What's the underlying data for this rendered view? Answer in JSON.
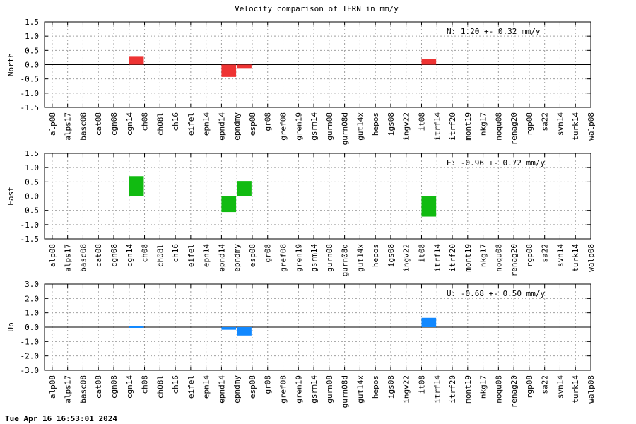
{
  "title": "Velocity comparison of TERN in mm/y",
  "timestamp": "Tue Apr 16 16:53:01 2024",
  "chart_data": [
    {
      "type": "bar",
      "ylabel": "North",
      "ylim": [
        -1.5,
        1.5
      ],
      "yticks": [
        -1.5,
        -1.0,
        -0.5,
        0.0,
        0.5,
        1.0,
        1.5
      ],
      "ytick_labels": [
        "-1.5",
        "-1.0",
        "-0.5",
        "0.0",
        "0.5",
        "1.0",
        "1.5"
      ],
      "annotation": "N:   1.20 +-  0.32 mm/y",
      "color": "#ee3333",
      "grid": true,
      "categories": [
        "alp08",
        "alps17",
        "basc08",
        "cat08",
        "cgn08",
        "cgn14",
        "ch08",
        "ch08l",
        "ch16",
        "eifel",
        "epn14",
        "epnd14",
        "epndmy",
        "esp08",
        "gr08",
        "gref08",
        "gren19",
        "gsrm14",
        "gurn08",
        "gurn08d",
        "gut14x",
        "hepos",
        "igs08",
        "ingv22",
        "it08",
        "itrf14",
        "itrf20",
        "mont19",
        "nkg17",
        "noqu08",
        "renag20",
        "rgp08",
        "sa22",
        "svn14",
        "turk14",
        "walp08"
      ],
      "values": [
        0,
        0,
        0,
        0,
        0,
        0.3,
        0,
        0,
        0,
        0,
        0,
        -0.43,
        -0.12,
        0,
        0,
        0,
        0,
        0,
        0,
        0,
        0,
        0,
        0,
        0,
        0.2,
        0,
        0,
        0,
        0,
        0,
        0,
        0,
        0,
        0,
        0,
        0
      ]
    },
    {
      "type": "bar",
      "ylabel": "East",
      "ylim": [
        -1.5,
        1.5
      ],
      "yticks": [
        -1.5,
        -1.0,
        -0.5,
        0.0,
        0.5,
        1.0,
        1.5
      ],
      "ytick_labels": [
        "-1.5",
        "-1.0",
        "-0.5",
        "0.0",
        "0.5",
        "1.0",
        "1.5"
      ],
      "annotation": "E:  -0.96 +-  0.72 mm/y",
      "color": "#11bb11",
      "grid": true,
      "categories": [
        "alp08",
        "alps17",
        "basc08",
        "cat08",
        "cgn08",
        "cgn14",
        "ch08",
        "ch08l",
        "ch16",
        "eifel",
        "epn14",
        "epnd14",
        "epndmy",
        "esp08",
        "gr08",
        "gref08",
        "gren19",
        "gsrm14",
        "gurn08",
        "gurn08d",
        "gut14x",
        "hepos",
        "igs08",
        "ingv22",
        "it08",
        "itrf14",
        "itrf20",
        "mont19",
        "nkg17",
        "noqu08",
        "renag20",
        "rgp08",
        "sa22",
        "svn14",
        "turk14",
        "walp08"
      ],
      "values": [
        0,
        0,
        0,
        0,
        0,
        0.7,
        0,
        0,
        0,
        0,
        0,
        -0.56,
        0.53,
        0,
        0,
        0,
        0,
        0,
        0,
        0,
        0,
        0,
        0,
        0,
        -0.72,
        0,
        0,
        0,
        0,
        0,
        0,
        0,
        0,
        0,
        0,
        0
      ]
    },
    {
      "type": "bar",
      "ylabel": "Up",
      "ylim": [
        -3.0,
        3.0
      ],
      "yticks": [
        -3.0,
        -2.0,
        -1.0,
        0.0,
        1.0,
        2.0,
        3.0
      ],
      "ytick_labels": [
        "-3.0",
        "-2.0",
        "-1.0",
        "0.0",
        "1.0",
        "2.0",
        "3.0"
      ],
      "annotation": "U:  -0.68 +-  0.50 mm/y",
      "color": "#1188ff",
      "grid": true,
      "categories": [
        "alp08",
        "alps17",
        "basc08",
        "cat08",
        "cgn08",
        "cgn14",
        "ch08",
        "ch08l",
        "ch16",
        "eifel",
        "epn14",
        "epnd14",
        "epndmy",
        "esp08",
        "gr08",
        "gref08",
        "gren19",
        "gsrm14",
        "gurn08",
        "gurn08d",
        "gut14x",
        "hepos",
        "igs08",
        "ingv22",
        "it08",
        "itrf14",
        "itrf20",
        "mont19",
        "nkg17",
        "noqu08",
        "renag20",
        "rgp08",
        "sa22",
        "svn14",
        "turk14",
        "walp08"
      ],
      "values": [
        0,
        0,
        0,
        0,
        0,
        0.05,
        0,
        0,
        0,
        0,
        0,
        -0.18,
        -0.58,
        0,
        0,
        0,
        0,
        0,
        0,
        0,
        0,
        0,
        0,
        0,
        0.65,
        0,
        0,
        0,
        0,
        0,
        0,
        0,
        0,
        0,
        0,
        0
      ]
    }
  ]
}
